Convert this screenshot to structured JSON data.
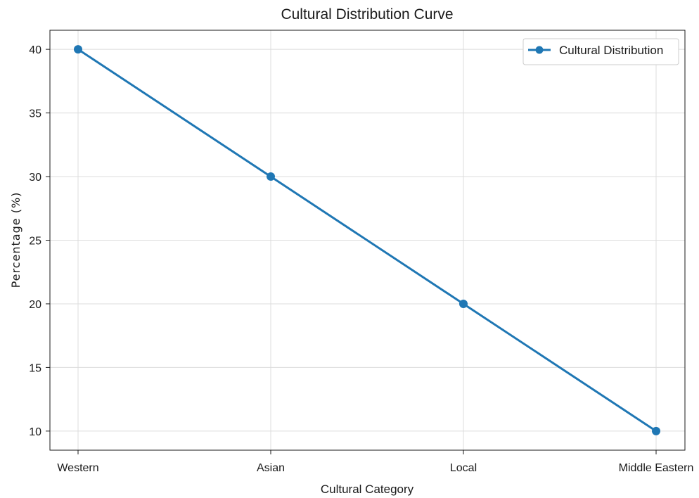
{
  "chart_data": {
    "type": "line",
    "title": "Cultural Distribution Curve",
    "xlabel": "Cultural Category",
    "ylabel": "Percentage (%)",
    "categories": [
      "Western",
      "Asian",
      "Local",
      "Middle Eastern"
    ],
    "series": [
      {
        "name": "Cultural Distribution",
        "values": [
          40,
          30,
          20,
          10
        ]
      }
    ],
    "ylim": [
      8.5,
      41.5
    ],
    "yticks": [
      10,
      15,
      20,
      25,
      30,
      35,
      40
    ],
    "grid": true,
    "legend": "top-right",
    "colors": {
      "line": "#1f77b4",
      "axis": "#1a1a1a",
      "grid": "#dcdcdc"
    }
  }
}
